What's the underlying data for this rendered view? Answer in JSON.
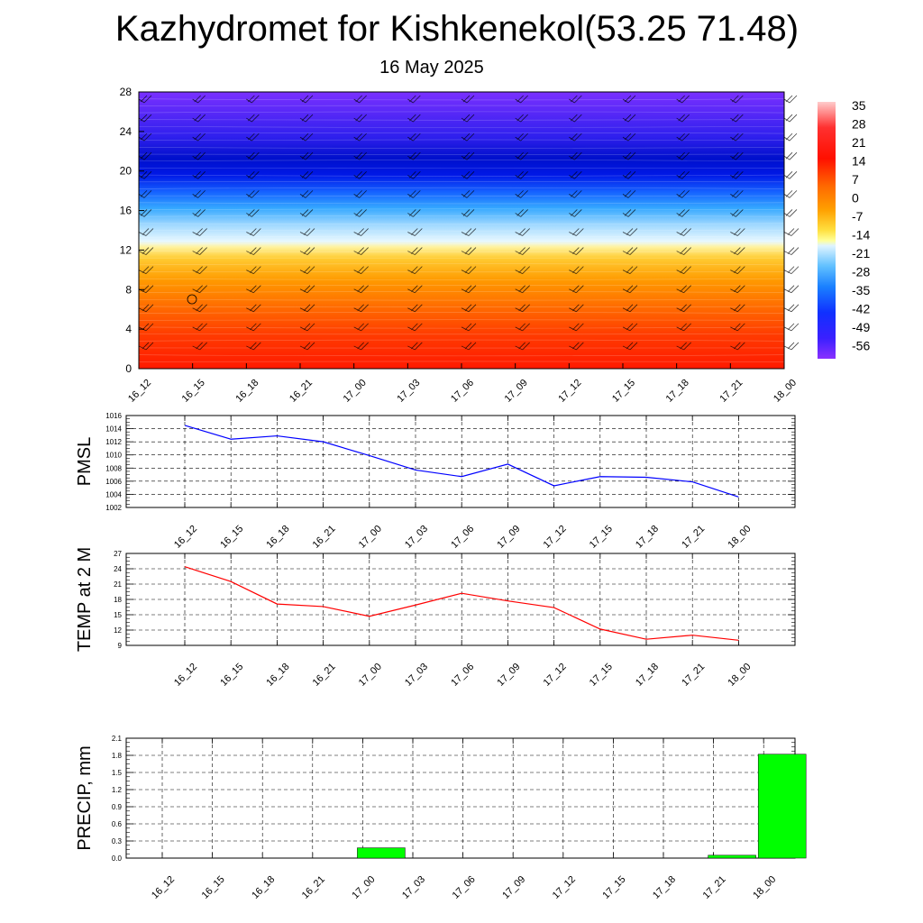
{
  "header": {
    "title": "Kazhydromet for Kishkenekol(53.25 71.48)",
    "date": "16 May 2025"
  },
  "time_labels": [
    "16_12",
    "16_15",
    "16_18",
    "16_21",
    "17_00",
    "17_03",
    "17_06",
    "17_09",
    "17_12",
    "17_15",
    "17_18",
    "17_21",
    "18_00"
  ],
  "colors": {
    "pmsl_line": "#0000ff",
    "temp_line": "#ff0000",
    "precip_bar": "#00ff00",
    "grid": "#000000"
  },
  "chart_data": [
    {
      "type": "heatmap",
      "title": "Kazhydromet for Kishkenekol(53.25 71.48)",
      "subtitle": "16 May 2025",
      "ylim": [
        0,
        28
      ],
      "y_ticks": [
        "0",
        "4",
        "8",
        "12",
        "16",
        "20",
        "24",
        "28"
      ],
      "x_ticks": [
        "16_12",
        "16_15",
        "16_18",
        "16_21",
        "17_00",
        "17_03",
        "17_06",
        "17_09",
        "17_12",
        "17_15",
        "17_18",
        "17_21",
        "18_00"
      ],
      "colorbar_labels": [
        "35",
        "28",
        "21",
        "14",
        "7",
        "0",
        "-7",
        "-14",
        "-21",
        "-28",
        "-35",
        "-42",
        "-49",
        "-56"
      ],
      "colorbar_range": [
        -56,
        35
      ]
    },
    {
      "type": "line",
      "ylabel": "PMSL",
      "x": [
        "16_12",
        "16_15",
        "16_18",
        "16_21",
        "17_00",
        "17_03",
        "17_06",
        "17_09",
        "17_12",
        "17_15",
        "17_18",
        "17_21",
        "18_00"
      ],
      "values": [
        1014.5,
        1012.4,
        1012.9,
        1012.0,
        1009.9,
        1007.7,
        1006.7,
        1008.6,
        1005.3,
        1006.7,
        1006.6,
        1005.9,
        1003.6
      ],
      "ylim": [
        1002,
        1016
      ],
      "y_ticks": [
        "1002",
        "1004",
        "1006",
        "1008",
        "1010",
        "1012",
        "1014",
        "1016"
      ]
    },
    {
      "type": "line",
      "ylabel": "TEMP at 2 M",
      "x": [
        "16_12",
        "16_15",
        "16_18",
        "16_21",
        "17_00",
        "17_03",
        "17_06",
        "17_09",
        "17_12",
        "17_15",
        "17_18",
        "17_21",
        "18_00"
      ],
      "values": [
        24.4,
        21.5,
        17.1,
        16.6,
        14.7,
        16.9,
        19.2,
        17.7,
        16.4,
        12.2,
        10.2,
        11.0,
        10.0
      ],
      "ylim": [
        9,
        27
      ],
      "y_ticks": [
        "9",
        "12",
        "15",
        "18",
        "21",
        "24",
        "27"
      ]
    },
    {
      "type": "bar",
      "ylabel": "PRECIP, mm",
      "categories": [
        "16_12",
        "16_15",
        "16_18",
        "16_21",
        "17_00",
        "17_03",
        "17_06",
        "17_09",
        "17_12",
        "17_15",
        "17_18",
        "17_21",
        "18_00"
      ],
      "values": [
        0,
        0,
        0,
        0,
        0.18,
        0,
        0,
        0,
        0,
        0,
        0,
        0.05,
        1.82
      ],
      "ylim": [
        0,
        2.1
      ],
      "y_ticks": [
        "0.0",
        "0.3",
        "0.6",
        "0.9",
        "1.2",
        "1.5",
        "1.8",
        "2.1"
      ]
    }
  ]
}
